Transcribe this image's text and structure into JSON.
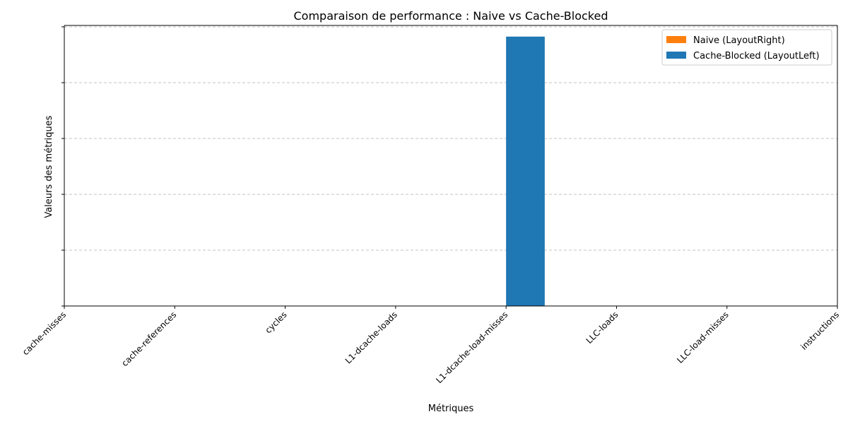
{
  "chart_data": {
    "type": "bar",
    "title": "Comparaison de performance : Naive vs Cache-Blocked",
    "xlabel": "Métriques",
    "ylabel": "Valeurs des métriques",
    "categories": [
      "cache-misses",
      "cache-references",
      "cycles",
      "L1-dcache-loads",
      "L1-dcache-load-misses",
      "LLC-loads",
      "LLC-load-misses",
      "instructions"
    ],
    "series": [
      {
        "name": "Naive (LayoutRight)",
        "color": "#ff7f0e",
        "values": [
          0,
          0,
          0,
          0,
          0,
          0,
          0,
          0
        ]
      },
      {
        "name": "Cache-Blocked (LayoutLeft)",
        "color": "#1f77b4",
        "values": [
          0,
          0,
          0,
          0,
          96.5,
          0,
          0,
          0
        ]
      }
    ],
    "ylim": [
      0,
      100.5
    ],
    "yticks": [
      0,
      20,
      40,
      60,
      80,
      100
    ],
    "grid": true,
    "legend_position": "top-right"
  }
}
